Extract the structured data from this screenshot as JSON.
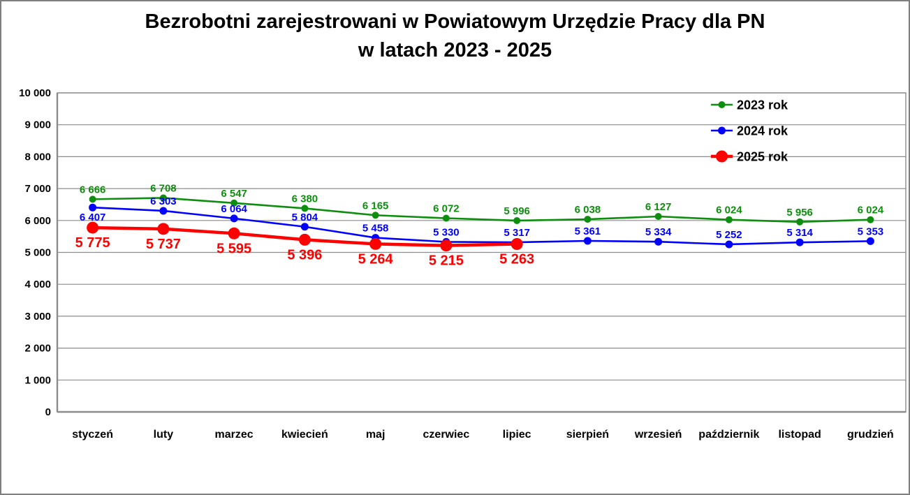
{
  "title": {
    "line1": "Bezrobotni zarejestrowani w Powiatowym Urzędzie Pracy dla PN",
    "line2": "w latach 2023 - 2025"
  },
  "colors": {
    "green": "#0e8e0e",
    "blue": "#0000ff",
    "red": "#ff0000",
    "grid": "#8c8c8c",
    "axis_text": "#000000",
    "frame_border": "#7f7f7f",
    "background": "#ffffff"
  },
  "chart_data": {
    "type": "line",
    "title": "Bezrobotni zarejestrowani w Powiatowym Urzędzie Pracy dla PN w latach 2023 - 2025",
    "xlabel": "",
    "ylabel": "",
    "ylim": [
      0,
      10000
    ],
    "ytick_step": 1000,
    "grid": true,
    "legend_position": "top-right",
    "categories": [
      "styczeń",
      "luty",
      "marzec",
      "kwiecień",
      "maj",
      "czerwiec",
      "lipiec",
      "sierpień",
      "wrzesień",
      "październik",
      "listopad",
      "grudzień"
    ],
    "series": [
      {
        "name": "2023 rok",
        "color": "#0e8e0e",
        "values": [
          6666,
          6708,
          6547,
          6380,
          6165,
          6072,
          5996,
          6038,
          6127,
          6024,
          5956,
          6024
        ],
        "marker_r": 5,
        "line_w": 2.6,
        "label_size": 15,
        "label_pos": "above",
        "label_dy_above": -9,
        "label_dy_below": 22,
        "label_pos_overrides": {}
      },
      {
        "name": "2024 rok",
        "color": "#0000ff",
        "values": [
          6407,
          6303,
          6064,
          5804,
          5458,
          5330,
          5317,
          5361,
          5334,
          5252,
          5314,
          5353
        ],
        "marker_r": 5.5,
        "line_w": 2.6,
        "label_size": 15,
        "label_pos": "above",
        "label_dy_above": -9,
        "label_dy_below": 19,
        "label_pos_overrides": {
          "0": "below"
        }
      },
      {
        "name": "2025 rok",
        "color": "#ff0000",
        "values": [
          5775,
          5737,
          5595,
          5396,
          5264,
          5215,
          5263
        ],
        "marker_r": 8.5,
        "line_w": 4.5,
        "label_size": 20,
        "label_pos": "below",
        "label_dy_above": -12,
        "label_dy_below": 28,
        "label_pos_overrides": {}
      }
    ]
  }
}
